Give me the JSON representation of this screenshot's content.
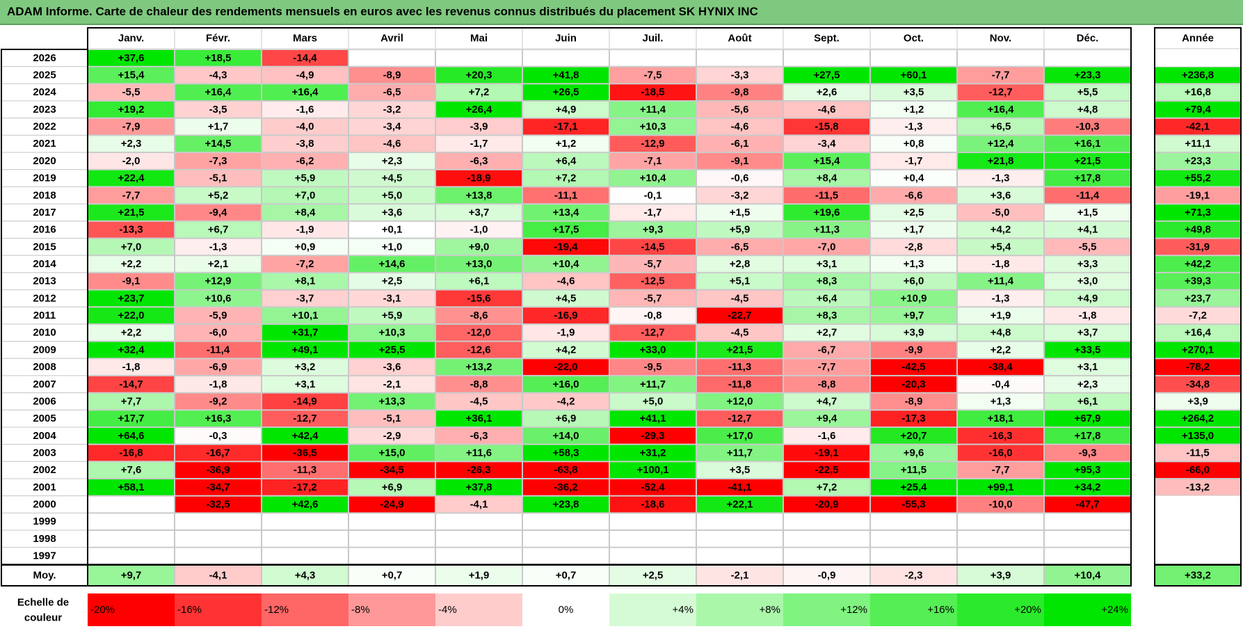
{
  "title": "ADAM Informe. Carte de chaleur des rendements mensuels en euros avec les revenus connus distribués du placement SK HYNIX INC",
  "chart_data": {
    "type": "heatmap",
    "title": "ADAM Informe. Carte de chaleur des rendements mensuels en euros avec les revenus connus distribués du placement SK HYNIX INC",
    "columns": [
      "Janv.",
      "Févr.",
      "Mars",
      "Avril",
      "Mai",
      "Juin",
      "Juil.",
      "Août",
      "Sept.",
      "Oct.",
      "Nov.",
      "Déc."
    ],
    "year_column_label": "Année",
    "rows": [
      {
        "year": "2026",
        "values": [
          37.6,
          18.5,
          -14.4,
          null,
          null,
          null,
          null,
          null,
          null,
          null,
          null,
          null
        ],
        "annual": null
      },
      {
        "year": "2025",
        "values": [
          15.4,
          -4.3,
          -4.9,
          -8.9,
          20.3,
          41.8,
          -7.5,
          -3.3,
          27.5,
          60.1,
          -7.7,
          23.3
        ],
        "annual": 236.8
      },
      {
        "year": "2024",
        "values": [
          -5.5,
          16.4,
          16.4,
          -6.5,
          7.2,
          26.5,
          -18.5,
          -9.8,
          2.6,
          3.5,
          -12.7,
          5.5
        ],
        "annual": 16.8
      },
      {
        "year": "2023",
        "values": [
          19.2,
          -3.5,
          -1.6,
          -3.2,
          26.4,
          4.9,
          11.4,
          -5.6,
          -4.6,
          1.2,
          16.4,
          4.8
        ],
        "annual": 79.4
      },
      {
        "year": "2022",
        "values": [
          -7.9,
          1.7,
          -4.0,
          -3.4,
          -3.9,
          -17.1,
          10.3,
          -4.6,
          -15.8,
          -1.3,
          6.5,
          -10.3
        ],
        "annual": -42.1
      },
      {
        "year": "2021",
        "values": [
          2.3,
          14.5,
          -3.8,
          -4.6,
          -1.7,
          1.2,
          -12.9,
          -6.1,
          -3.4,
          0.8,
          12.4,
          16.1
        ],
        "annual": 11.1
      },
      {
        "year": "2020",
        "values": [
          -2.0,
          -7.3,
          -6.2,
          2.3,
          -6.3,
          6.4,
          -7.1,
          -9.1,
          15.4,
          -1.7,
          21.8,
          21.5
        ],
        "annual": 23.3
      },
      {
        "year": "2019",
        "values": [
          22.4,
          -5.1,
          5.9,
          4.5,
          -18.9,
          7.2,
          10.4,
          -0.6,
          8.4,
          0.4,
          -1.3,
          17.8
        ],
        "annual": 55.2
      },
      {
        "year": "2018",
        "values": [
          -7.7,
          5.2,
          7.0,
          5.0,
          13.8,
          -11.1,
          -0.1,
          -3.2,
          -11.5,
          -6.6,
          3.6,
          -11.4
        ],
        "annual": -19.1
      },
      {
        "year": "2017",
        "values": [
          21.5,
          -9.4,
          8.4,
          3.6,
          3.7,
          13.4,
          -1.7,
          1.5,
          19.6,
          2.5,
          -5.0,
          1.5
        ],
        "annual": 71.3
      },
      {
        "year": "2016",
        "values": [
          -13.3,
          6.7,
          -1.9,
          0.1,
          -1.0,
          17.5,
          9.3,
          5.9,
          11.3,
          1.7,
          4.2,
          4.1
        ],
        "annual": 49.8
      },
      {
        "year": "2015",
        "values": [
          7.0,
          -1.3,
          0.9,
          1.0,
          9.0,
          -19.4,
          -14.5,
          -6.5,
          -7.0,
          -2.8,
          5.4,
          -5.5
        ],
        "annual": -31.9
      },
      {
        "year": "2014",
        "values": [
          2.2,
          2.1,
          -7.2,
          14.6,
          13.0,
          10.4,
          -5.7,
          2.8,
          3.1,
          1.3,
          -1.8,
          3.3
        ],
        "annual": 42.2
      },
      {
        "year": "2013",
        "values": [
          -9.1,
          12.9,
          8.1,
          2.5,
          6.1,
          -4.6,
          -12.5,
          5.1,
          8.3,
          6.0,
          11.4,
          3.0
        ],
        "annual": 39.3
      },
      {
        "year": "2012",
        "values": [
          23.7,
          10.6,
          -3.7,
          -3.1,
          -15.6,
          4.5,
          -5.7,
          -4.5,
          6.4,
          10.9,
          -1.3,
          4.9
        ],
        "annual": 23.7
      },
      {
        "year": "2011",
        "values": [
          22.0,
          -5.9,
          10.1,
          5.9,
          -8.6,
          -16.9,
          -0.8,
          -22.7,
          8.3,
          9.7,
          1.9,
          -1.8
        ],
        "annual": -7.2
      },
      {
        "year": "2010",
        "values": [
          2.2,
          -6.0,
          31.7,
          10.3,
          -12.0,
          -1.9,
          -12.7,
          -4.5,
          2.7,
          3.9,
          4.8,
          3.7
        ],
        "annual": 16.4
      },
      {
        "year": "2009",
        "values": [
          32.4,
          -11.4,
          49.1,
          25.5,
          -12.6,
          4.2,
          33.0,
          21.5,
          -6.7,
          -9.9,
          2.2,
          33.5
        ],
        "annual": 270.1
      },
      {
        "year": "2008",
        "values": [
          -1.8,
          -6.9,
          3.2,
          -3.6,
          13.2,
          -22.0,
          -9.5,
          -11.3,
          -7.7,
          -42.5,
          -38.4,
          3.1
        ],
        "annual": -78.2
      },
      {
        "year": "2007",
        "values": [
          -14.7,
          -1.8,
          3.1,
          -2.1,
          -8.8,
          16.0,
          11.7,
          -11.8,
          -8.8,
          -20.3,
          -0.4,
          2.3
        ],
        "annual": -34.8
      },
      {
        "year": "2006",
        "values": [
          7.7,
          -9.2,
          -14.9,
          13.3,
          -4.5,
          -4.2,
          5.0,
          12.0,
          4.7,
          -8.9,
          1.3,
          6.1
        ],
        "annual": 3.9
      },
      {
        "year": "2005",
        "values": [
          17.7,
          16.3,
          -12.7,
          -5.1,
          36.1,
          6.9,
          41.1,
          -12.7,
          9.4,
          -17.3,
          18.1,
          67.9
        ],
        "annual": 264.2
      },
      {
        "year": "2004",
        "values": [
          64.6,
          -0.3,
          42.4,
          -2.9,
          -6.3,
          14.0,
          -29.3,
          17.0,
          -1.6,
          20.7,
          -16.3,
          17.8
        ],
        "annual": 135.0
      },
      {
        "year": "2003",
        "values": [
          -16.8,
          -16.7,
          -36.5,
          15.0,
          11.6,
          58.3,
          31.2,
          11.7,
          -19.1,
          9.6,
          -16.0,
          -9.3
        ],
        "annual": -11.5
      },
      {
        "year": "2002",
        "values": [
          7.6,
          -36.9,
          -11.3,
          -34.5,
          -26.3,
          -63.8,
          100.1,
          3.5,
          -22.5,
          11.5,
          -7.7,
          95.3
        ],
        "annual": -66.0
      },
      {
        "year": "2001",
        "values": [
          58.1,
          -34.7,
          -17.2,
          6.9,
          37.8,
          -36.2,
          -52.4,
          -41.1,
          7.2,
          25.4,
          99.1,
          34.2
        ],
        "annual": -13.2
      },
      {
        "year": "2000",
        "values": [
          null,
          -32.5,
          42.6,
          -24.9,
          -4.1,
          23.8,
          -18.6,
          22.1,
          -20.9,
          -55.3,
          -10.0,
          -47.7
        ],
        "annual": null
      },
      {
        "year": "1999",
        "values": [
          null,
          null,
          null,
          null,
          null,
          null,
          null,
          null,
          null,
          null,
          null,
          null
        ],
        "annual": null
      },
      {
        "year": "1998",
        "values": [
          null,
          null,
          null,
          null,
          null,
          null,
          null,
          null,
          null,
          null,
          null,
          null
        ],
        "annual": null
      },
      {
        "year": "1997",
        "values": [
          null,
          null,
          null,
          null,
          null,
          null,
          null,
          null,
          null,
          null,
          null,
          null
        ],
        "annual": null
      }
    ],
    "average": {
      "label": "Moy.",
      "values": [
        9.7,
        -4.1,
        4.3,
        0.7,
        1.9,
        0.7,
        2.5,
        -2.1,
        -0.9,
        -2.3,
        3.9,
        10.4
      ],
      "annual": 33.2
    },
    "scale": {
      "label_line1": "Echelle de",
      "label_line2": "couleur",
      "stops": [
        "-20%",
        "-16%",
        "-12%",
        "-8%",
        "-4%",
        "0%",
        "+4%",
        "+8%",
        "+12%",
        "+16%",
        "+20%",
        "+24%"
      ],
      "stop_values": [
        -20,
        -16,
        -12,
        -8,
        -4,
        0,
        4,
        8,
        12,
        16,
        20,
        24
      ]
    },
    "colors": {
      "neg_max": "#ff0000",
      "neutral": "#ffffff",
      "pos_max": "#00e600",
      "grid": "#c8c8c8",
      "border": "#000000"
    }
  }
}
